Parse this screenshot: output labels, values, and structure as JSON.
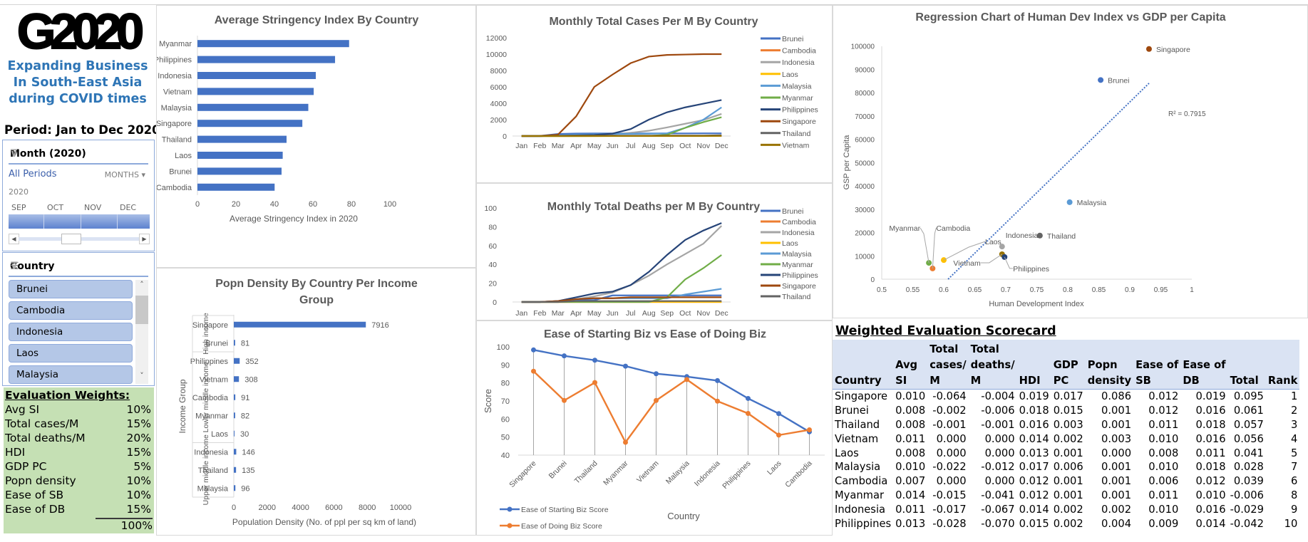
{
  "logo_text": "G2020",
  "tagline": [
    "Expanding Business",
    "In South-East Asia",
    "during COVID times"
  ],
  "period": "Period: Jan to Dec 2020",
  "month_slicer": {
    "title": "Month (2020)",
    "selection": "All Periods",
    "level": "MONTHS",
    "year": "2020",
    "visible_months": [
      "SEP",
      "OCT",
      "NOV",
      "DEC"
    ],
    "icons": {
      "clear_filter": "clear-filter-icon",
      "scroll_left": "chevron-left-icon",
      "scroll_right": "chevron-right-icon"
    }
  },
  "country_slicer": {
    "title": "Country",
    "items": [
      "Brunei",
      "Cambodia",
      "Indonesia",
      "Laos",
      "Malaysia"
    ],
    "icons": {
      "multiselect": "multi-select-icon",
      "clear_filter": "clear-filter-icon"
    }
  },
  "evaluation_weights": {
    "title": "Evaluation Weights:",
    "rows": [
      {
        "label": "Avg SI",
        "value": "10%"
      },
      {
        "label": "Total cases/M",
        "value": "15%"
      },
      {
        "label": "Total deaths/M",
        "value": "20%"
      },
      {
        "label": "HDI",
        "value": "15%"
      },
      {
        "label": "GDP PC",
        "value": "5%"
      },
      {
        "label": "Popn density",
        "value": "10%"
      },
      {
        "label": "Ease of SB",
        "value": "10%"
      },
      {
        "label": "Ease of DB",
        "value": "15%"
      }
    ],
    "total": "100%"
  },
  "scorecard": {
    "title": "Weighted Evaluation Scorecard",
    "headers": [
      [
        "",
        "",
        "Country"
      ],
      [
        "",
        "Avg",
        "SI"
      ],
      [
        "Total",
        "cases/",
        "M"
      ],
      [
        "Total",
        "deaths/",
        "M"
      ],
      [
        "",
        "",
        "HDI"
      ],
      [
        "",
        "GDP",
        "PC"
      ],
      [
        "",
        "Popn",
        "density"
      ],
      [
        "",
        "Ease of",
        "SB"
      ],
      [
        "",
        "Ease of",
        "DB"
      ],
      [
        "",
        "",
        "Total"
      ],
      [
        "",
        "",
        "Rank"
      ]
    ],
    "rows": [
      [
        "Singapore",
        "0.010",
        "-0.064",
        "-0.004",
        "0.019",
        "0.017",
        "0.086",
        "0.012",
        "0.019",
        "0.095",
        "1"
      ],
      [
        "Brunei",
        "0.008",
        "-0.002",
        "-0.006",
        "0.018",
        "0.015",
        "0.001",
        "0.012",
        "0.016",
        "0.061",
        "2"
      ],
      [
        "Thailand",
        "0.008",
        "-0.001",
        "-0.001",
        "0.016",
        "0.003",
        "0.001",
        "0.011",
        "0.018",
        "0.057",
        "3"
      ],
      [
        "Vietnam",
        "0.011",
        "0.000",
        "0.000",
        "0.014",
        "0.002",
        "0.003",
        "0.010",
        "0.016",
        "0.056",
        "4"
      ],
      [
        "Laos",
        "0.008",
        "0.000",
        "0.000",
        "0.013",
        "0.001",
        "0.000",
        "0.008",
        "0.011",
        "0.041",
        "5"
      ],
      [
        "Malaysia",
        "0.010",
        "-0.022",
        "-0.012",
        "0.017",
        "0.006",
        "0.001",
        "0.010",
        "0.018",
        "0.028",
        "7"
      ],
      [
        "Cambodia",
        "0.007",
        "0.000",
        "0.000",
        "0.012",
        "0.001",
        "0.001",
        "0.006",
        "0.012",
        "0.039",
        "6"
      ],
      [
        "Myanmar",
        "0.014",
        "-0.015",
        "-0.041",
        "0.012",
        "0.001",
        "0.001",
        "0.011",
        "0.010",
        "-0.006",
        "8"
      ],
      [
        "Indonesia",
        "0.011",
        "-0.017",
        "-0.067",
        "0.014",
        "0.002",
        "0.002",
        "0.010",
        "0.016",
        "-0.029",
        "9"
      ],
      [
        "Philippines",
        "0.013",
        "-0.028",
        "-0.070",
        "0.015",
        "0.002",
        "0.004",
        "0.009",
        "0.014",
        "-0.042",
        "10"
      ]
    ]
  },
  "colors": {
    "Brunei": "#4472c4",
    "Cambodia": "#ed7d31",
    "Indonesia": "#a5a5a5",
    "Laos": "#ffc000",
    "Malaysia": "#5b9bd5",
    "Myanmar": "#70ad47",
    "Philippines": "#264478",
    "Singapore": "#9e480e",
    "Thailand": "#636363",
    "Vietnam": "#997300",
    "bar": "#4472c4",
    "accent": "#2e75b6"
  },
  "chart_data": [
    {
      "id": "stringency",
      "type": "bar",
      "orientation": "horizontal",
      "title": "Average Stringency Index By Country",
      "categories": [
        "Myanmar",
        "Philippines",
        "Indonesia",
        "Vietnam",
        "Malaysia",
        "Singapore",
        "Thailand",
        "Laos",
        "Brunei",
        "Cambodia"
      ],
      "values": [
        78.8,
        71.5,
        61.5,
        60.4,
        57.6,
        54.5,
        46.3,
        44.3,
        43.7,
        40.1
      ],
      "xlabel": "Average Stringency Index in 2020",
      "ylabel": "",
      "xlim": [
        0,
        100
      ],
      "xticks": [
        0,
        20,
        40,
        60,
        80,
        100
      ]
    },
    {
      "id": "popn_density",
      "type": "bar",
      "orientation": "horizontal",
      "title": "Popn Density By Country Per Income Group",
      "groups": [
        {
          "name": "High income",
          "categories": [
            "Singapore",
            "Brunei"
          ],
          "values": [
            7916,
            81
          ]
        },
        {
          "name": "Lower middle income",
          "categories": [
            "Philippines",
            "Vietnam",
            "Cambodia",
            "Myanmar",
            "Laos"
          ],
          "values": [
            352,
            308,
            91,
            82,
            30
          ]
        },
        {
          "name": "Upper middle income",
          "categories": [
            "Indonesia",
            "Thailand",
            "Malaysia"
          ],
          "values": [
            146,
            135,
            96
          ]
        }
      ],
      "xlabel": "Population Density (No. of ppl per sq km of land)",
      "ylabel": "Income Group",
      "xlim": [
        0,
        10000
      ],
      "xticks": [
        0,
        2000,
        4000,
        6000,
        8000,
        10000
      ],
      "data_labels": true
    },
    {
      "id": "cases",
      "type": "line",
      "title": "Monthly Total Cases Per M By Country",
      "x": [
        "Jan",
        "Feb",
        "Mar",
        "Apr",
        "May",
        "Jun",
        "Jul",
        "Aug",
        "Sep",
        "Oct",
        "Nov",
        "Dec"
      ],
      "ylim": [
        0,
        12000
      ],
      "yticks": [
        0,
        2000,
        4000,
        6000,
        8000,
        10000,
        12000
      ],
      "legend": "right",
      "series": [
        {
          "name": "Brunei",
          "values": [
            0,
            10,
            250,
            310,
            320,
            320,
            320,
            320,
            320,
            320,
            330,
            330
          ]
        },
        {
          "name": "Cambodia",
          "values": [
            0,
            0,
            2,
            7,
            7,
            8,
            10,
            15,
            17,
            18,
            19,
            22
          ]
        },
        {
          "name": "Indonesia",
          "values": [
            0,
            0,
            5,
            30,
            90,
            200,
            400,
            650,
            1050,
            1500,
            1950,
            2700
          ]
        },
        {
          "name": "Laos",
          "values": [
            0,
            0,
            1,
            3,
            3,
            3,
            3,
            3,
            3,
            3,
            3,
            6
          ]
        },
        {
          "name": "Malaysia",
          "values": [
            0,
            1,
            80,
            180,
            210,
            260,
            270,
            280,
            330,
            1000,
            2000,
            3500
          ]
        },
        {
          "name": "Myanmar",
          "values": [
            0,
            0,
            1,
            3,
            4,
            5,
            6,
            10,
            150,
            1000,
            1700,
            2300
          ]
        },
        {
          "name": "Philippines",
          "values": [
            0,
            0,
            20,
            80,
            130,
            300,
            850,
            2000,
            2900,
            3500,
            3950,
            4400
          ]
        },
        {
          "name": "Singapore",
          "values": [
            0,
            10,
            170,
            2400,
            6000,
            7500,
            8900,
            9700,
            9900,
            9950,
            10000,
            10000
          ]
        },
        {
          "name": "Thailand",
          "values": [
            0,
            1,
            25,
            42,
            44,
            45,
            47,
            50,
            52,
            55,
            58,
            95
          ]
        },
        {
          "name": "Vietnam",
          "values": [
            0,
            0,
            2,
            3,
            3,
            4,
            4,
            11,
            11,
            12,
            13,
            15
          ]
        }
      ]
    },
    {
      "id": "deaths",
      "type": "line",
      "title": "Monthly Total Deaths per M By Country",
      "x": [
        "Jan",
        "Feb",
        "Mar",
        "Apr",
        "May",
        "Jun",
        "Jul",
        "Aug",
        "Sep",
        "Oct",
        "Nov",
        "Dec"
      ],
      "ylim": [
        0,
        100
      ],
      "yticks": [
        0,
        20,
        40,
        60,
        80,
        100
      ],
      "legend": "right",
      "series": [
        {
          "name": "Brunei",
          "values": [
            0,
            0,
            0,
            2,
            2,
            7,
            7,
            7,
            7,
            7,
            7,
            7
          ]
        },
        {
          "name": "Cambodia",
          "values": [
            0,
            0,
            0,
            0,
            0,
            0,
            0,
            0,
            0,
            0,
            0,
            0
          ]
        },
        {
          "name": "Indonesia",
          "values": [
            0,
            0,
            1,
            3,
            6,
            10,
            18,
            28,
            40,
            51,
            62,
            81
          ]
        },
        {
          "name": "Laos",
          "values": [
            0,
            0,
            0,
            0,
            0,
            0,
            0,
            0,
            0,
            0,
            0,
            0
          ]
        },
        {
          "name": "Malaysia",
          "values": [
            0,
            0,
            1,
            3,
            4,
            4,
            4,
            4,
            4,
            8,
            11,
            14
          ]
        },
        {
          "name": "Myanmar",
          "values": [
            0,
            0,
            0,
            0,
            0,
            0,
            0,
            0,
            5,
            24,
            36,
            50
          ]
        },
        {
          "name": "Philippines",
          "values": [
            0,
            0,
            1,
            5,
            9,
            11,
            18,
            32,
            50,
            66,
            76,
            84
          ]
        },
        {
          "name": "Singapore",
          "values": [
            0,
            0,
            1,
            3,
            4,
            4,
            5,
            5,
            5,
            5,
            5,
            5
          ]
        },
        {
          "name": "Thailand",
          "values": [
            0,
            0,
            0,
            1,
            1,
            1,
            1,
            1,
            1,
            1,
            1,
            1
          ]
        }
      ]
    },
    {
      "id": "ease_biz",
      "type": "line",
      "title": "Ease of Starting Biz vs Ease of Doing Biz",
      "x": [
        "Singapore",
        "Brunei",
        "Thailand",
        "Myanmar",
        "Vietnam",
        "Malaysia",
        "Indonesia",
        "Philippines",
        "Laos",
        "Cambodia"
      ],
      "xlabel": "Country",
      "ylabel": "Score",
      "ylim": [
        40,
        100
      ],
      "yticks": [
        40,
        50,
        60,
        70,
        80,
        90,
        100
      ],
      "legend": "bottom-left",
      "series": [
        {
          "name": "Ease of Starting Biz Score",
          "color": "#4472c4",
          "values": [
            98.3,
            95.0,
            92.6,
            89.3,
            85.1,
            83.5,
            81.3,
            71.4,
            63.0,
            52.9
          ]
        },
        {
          "name": "Ease of Doing Biz Score",
          "color": "#ed7d31",
          "values": [
            86.5,
            70.3,
            80.2,
            47.1,
            70.3,
            81.9,
            69.9,
            63.1,
            51.1,
            54.0
          ]
        }
      ]
    },
    {
      "id": "regression",
      "type": "scatter",
      "title": "Regression Chart of Human Dev Index vs GDP per Capita",
      "xlabel": "Human Development Index",
      "ylabel": "GSP per Capita",
      "xlim": [
        0.5,
        1.0
      ],
      "ylim": [
        0,
        100000
      ],
      "xticks": [
        0.5,
        0.55,
        0.6,
        0.65,
        0.7,
        0.75,
        0.8,
        0.85,
        0.9,
        0.95,
        1
      ],
      "yticks": [
        0,
        10000,
        20000,
        30000,
        40000,
        50000,
        60000,
        70000,
        80000,
        90000,
        100000
      ],
      "points": [
        {
          "name": "Singapore",
          "x": 0.931,
          "y": 98700
        },
        {
          "name": "Brunei",
          "x": 0.853,
          "y": 85400
        },
        {
          "name": "Malaysia",
          "x": 0.803,
          "y": 33000
        },
        {
          "name": "Thailand",
          "x": 0.755,
          "y": 18700
        },
        {
          "name": "Indonesia",
          "x": 0.694,
          "y": 14000
        },
        {
          "name": "Vietnam",
          "x": 0.694,
          "y": 10700
        },
        {
          "name": "Philippines",
          "x": 0.698,
          "y": 9500
        },
        {
          "name": "Laos",
          "x": 0.6,
          "y": 8200
        },
        {
          "name": "Cambodia",
          "x": 0.582,
          "y": 4600
        },
        {
          "name": "Myanmar",
          "x": 0.576,
          "y": 7000
        }
      ],
      "trendline": {
        "type": "linear",
        "from": [
          0.607,
          0
        ],
        "to": [
          0.931,
          84000
        ],
        "r2_label": "R² = 0.7915"
      }
    }
  ]
}
